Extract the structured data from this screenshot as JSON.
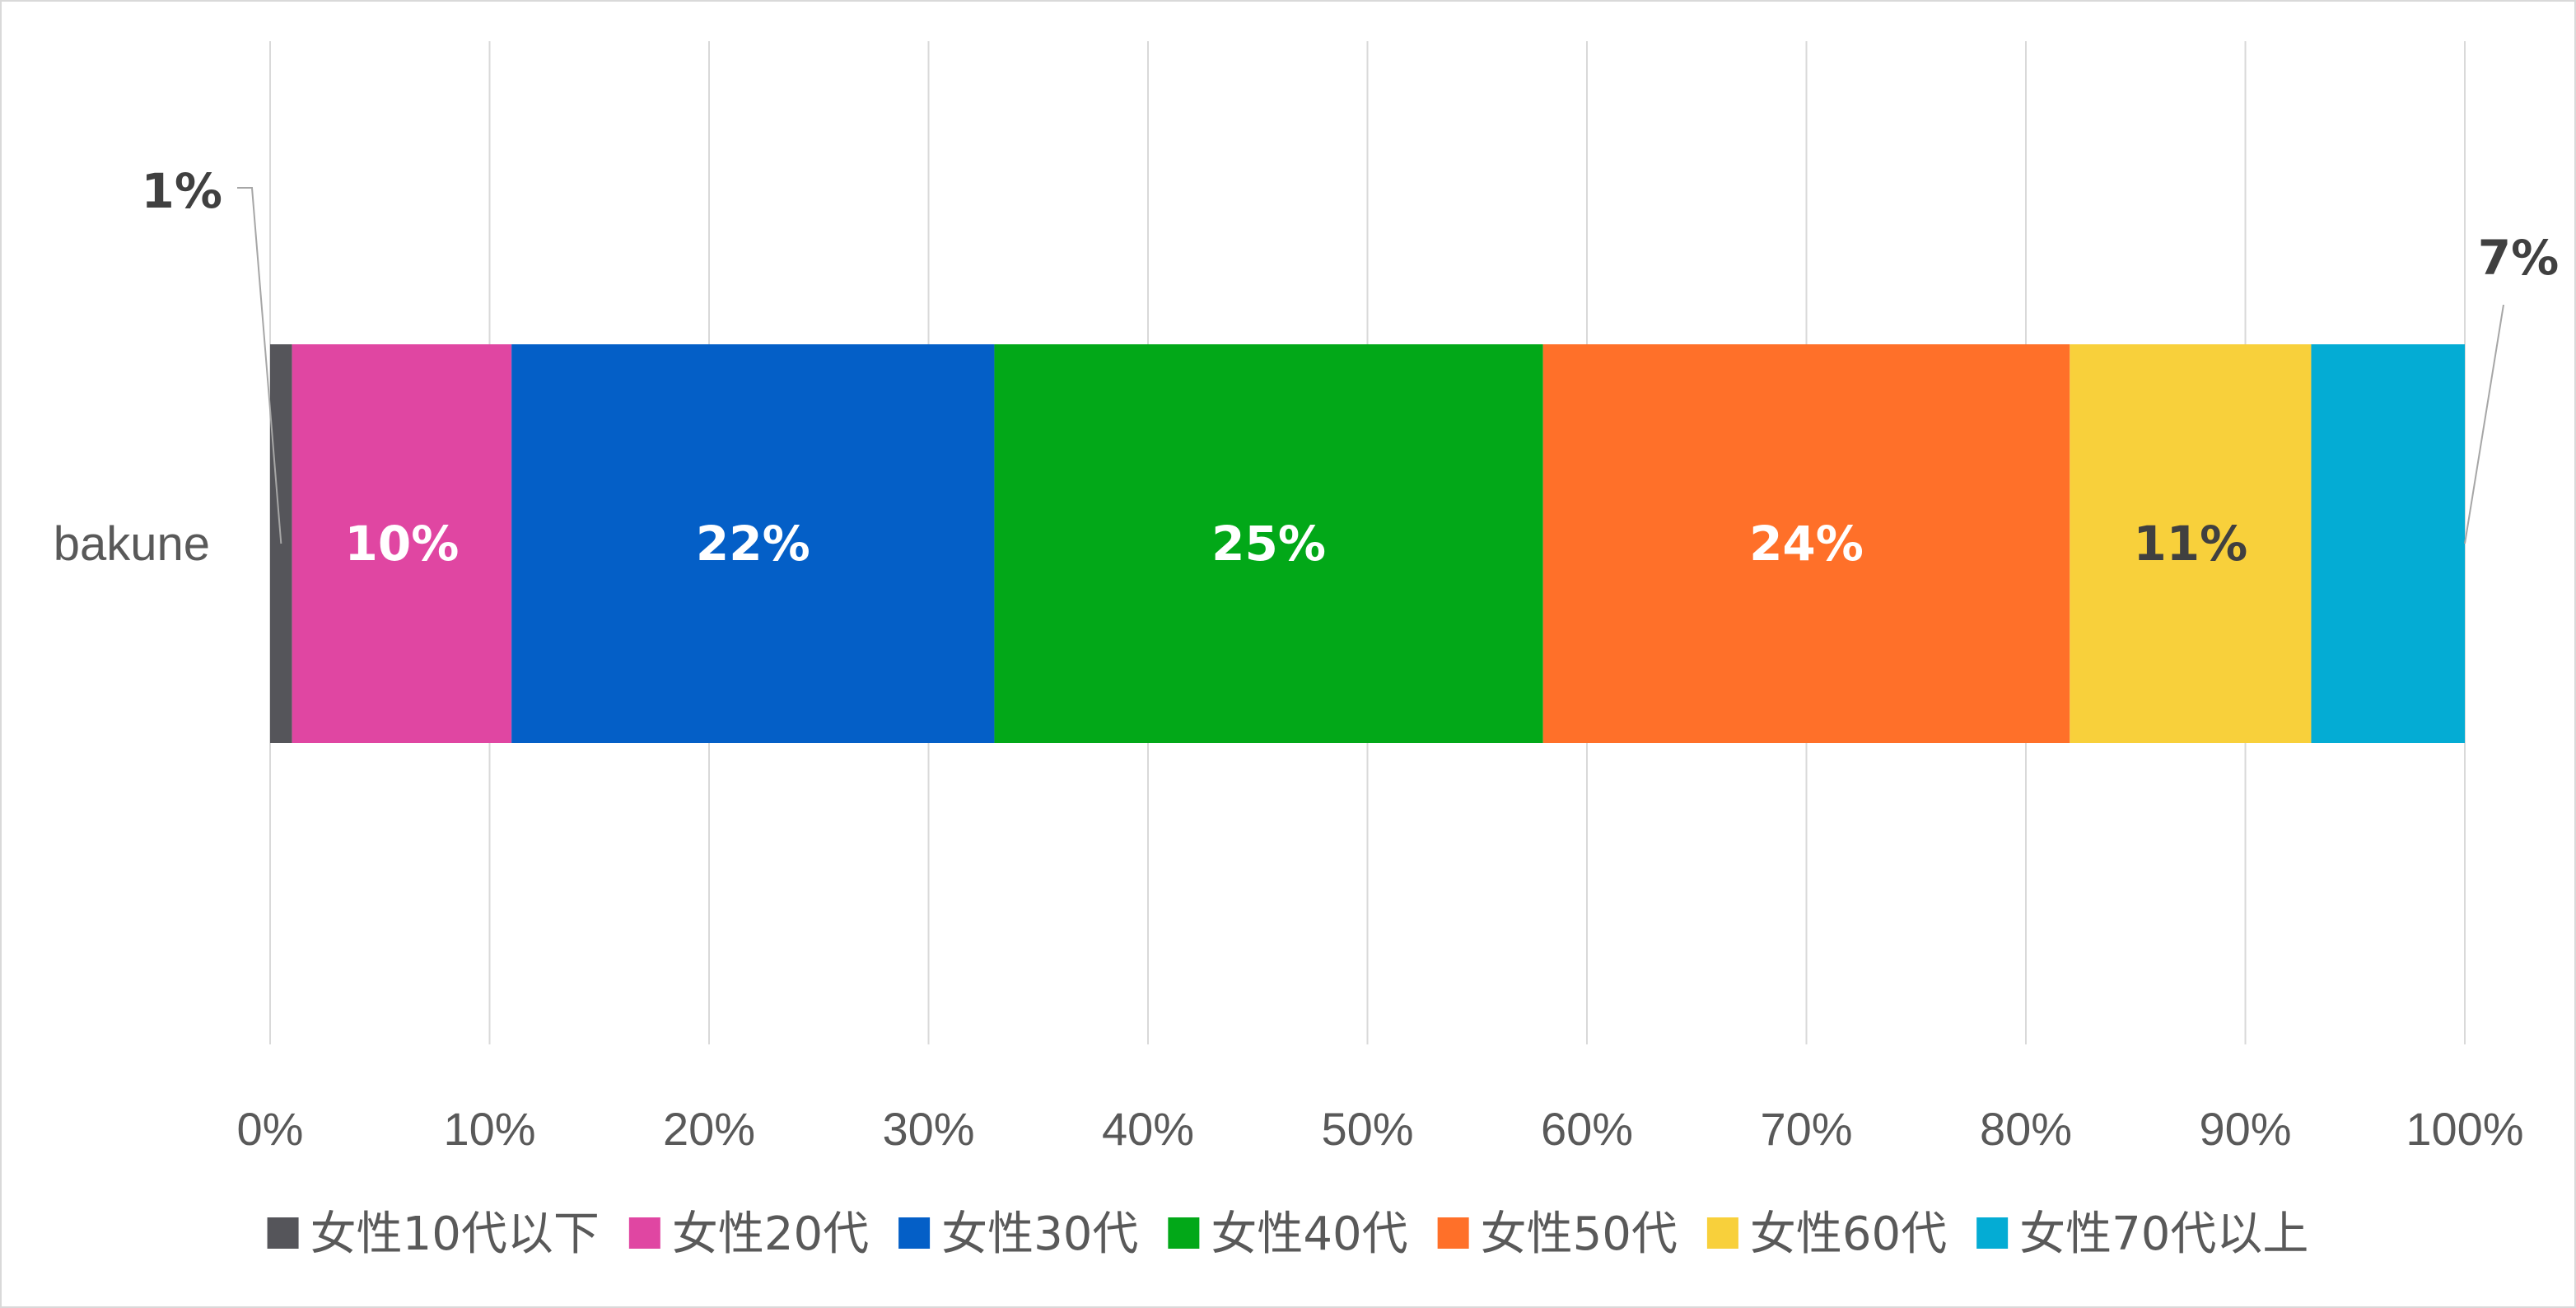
{
  "chart_data": {
    "type": "bar",
    "orientation": "horizontal",
    "stacked": "percent",
    "categories": [
      "bakune"
    ],
    "xlim": [
      0,
      100
    ],
    "x_ticks": [
      "0%",
      "10%",
      "20%",
      "30%",
      "40%",
      "50%",
      "60%",
      "70%",
      "80%",
      "90%",
      "100%"
    ],
    "grid": true,
    "legend_position": "bottom",
    "series": [
      {
        "name": "女性10代以下",
        "values": [
          1
        ],
        "label": "1%",
        "color": "#55555a",
        "label_color": "#404040",
        "label_placement": "callout-left"
      },
      {
        "name": "女性20代",
        "values": [
          10
        ],
        "label": "10%",
        "color": "#e046a2",
        "label_color": "#ffffff",
        "label_placement": "center"
      },
      {
        "name": "女性30代",
        "values": [
          22
        ],
        "label": "22%",
        "color": "#045fc7",
        "label_color": "#ffffff",
        "label_placement": "center"
      },
      {
        "name": "女性40代",
        "values": [
          25
        ],
        "label": "25%",
        "color": "#02a818",
        "label_color": "#ffffff",
        "label_placement": "center"
      },
      {
        "name": "女性50代",
        "values": [
          24
        ],
        "label": "24%",
        "color": "#ff7029",
        "label_color": "#ffffff",
        "label_placement": "center"
      },
      {
        "name": "女性60代",
        "values": [
          11
        ],
        "label": "11%",
        "color": "#f8d03b",
        "label_color": "#404040",
        "label_placement": "center"
      },
      {
        "name": "女性70代以上",
        "values": [
          7
        ],
        "label": "7%",
        "color": "#04acd4",
        "label_color": "#404040",
        "label_placement": "callout-right"
      }
    ]
  }
}
